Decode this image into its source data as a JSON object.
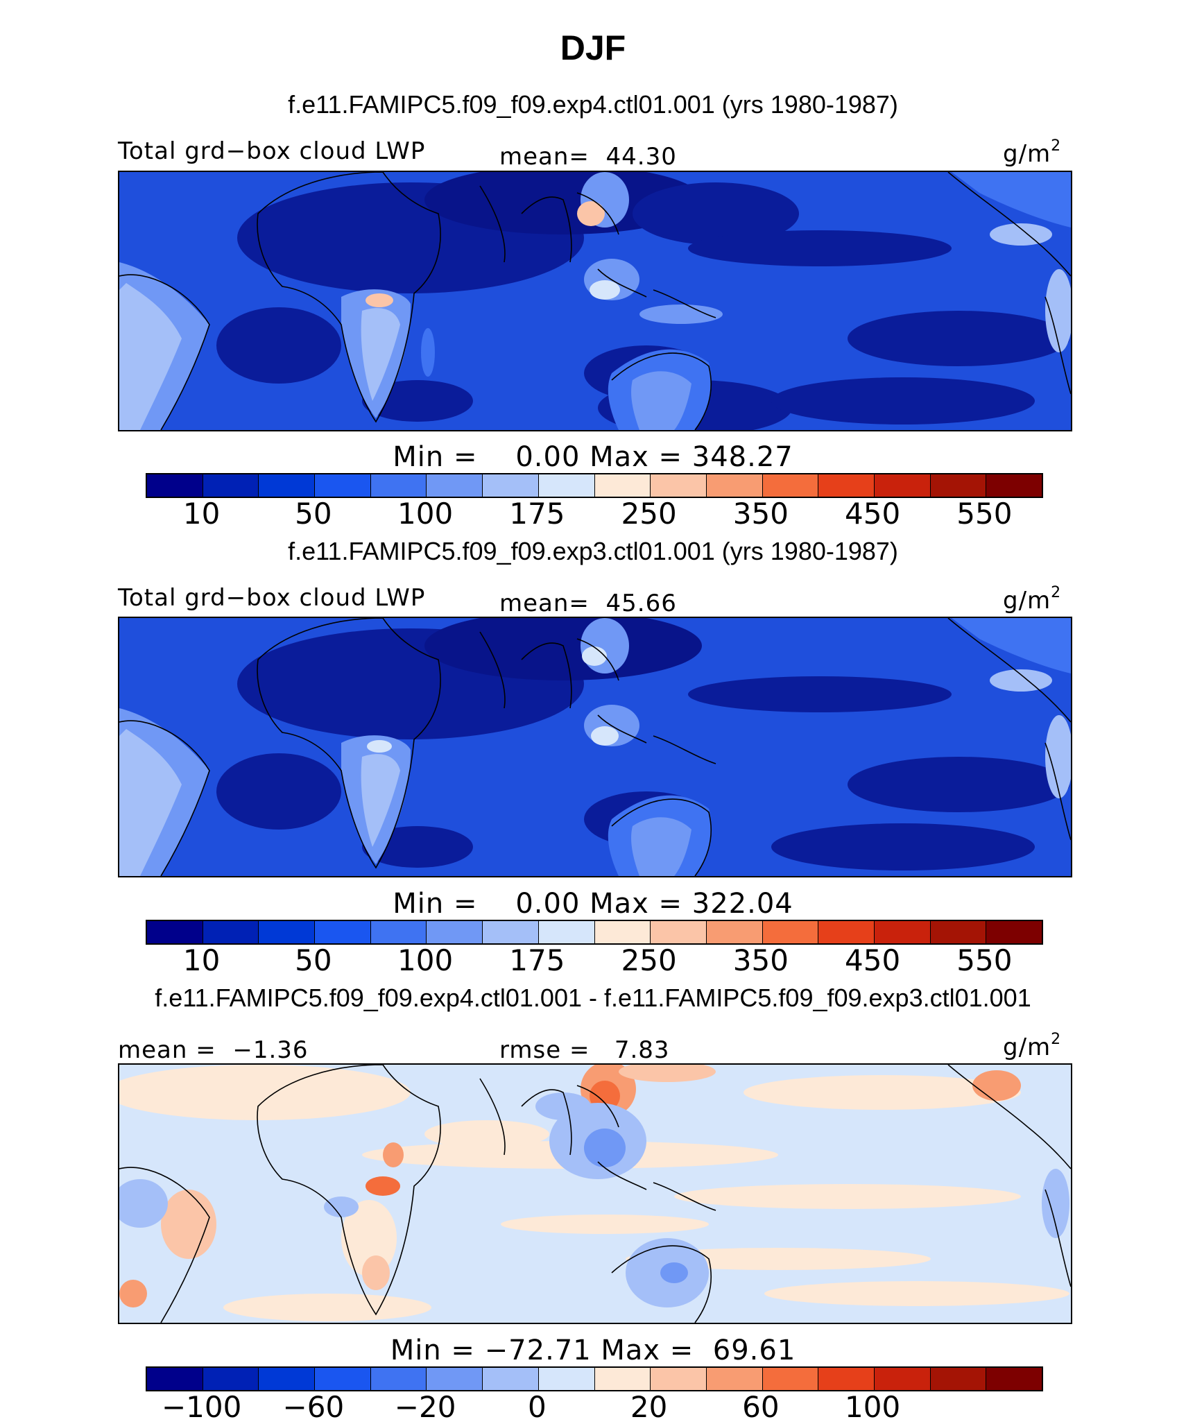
{
  "title": "DJF",
  "units_main": "g/m",
  "units_sup": "2",
  "panels": [
    {
      "case_title": "f.e11.FAMIPC5.f09_f09.exp4.ctl01.001 (yrs 1980-1987)",
      "var_label": "Total grd−box cloud LWP",
      "stat_label": "mean=  44.30",
      "minmax": "Min =    0.00 Max = 348.27"
    },
    {
      "case_title": "f.e11.FAMIPC5.f09_f09.exp3.ctl01.001 (yrs 1980-1987)",
      "var_label": "Total grd−box cloud LWP",
      "stat_label": "mean=  45.66",
      "minmax": "Min =    0.00 Max = 322.04"
    },
    {
      "case_title": "f.e11.FAMIPC5.f09_f09.exp4.ctl01.001 - f.e11.FAMIPC5.f09_f09.exp3.ctl01.001",
      "var_label": "mean =  −1.36",
      "stat_label": "rmse =   7.83",
      "minmax": "Min = −72.71 Max =  69.61"
    }
  ],
  "colorbar_abs": {
    "colors": [
      "#00008b",
      "#0021b5",
      "#0039d6",
      "#1a56f0",
      "#3f73f2",
      "#7098f5",
      "#a4bff8",
      "#d6e6fb",
      "#fde9d7",
      "#fbc5a8",
      "#f89c72",
      "#f46d3c",
      "#e6401a",
      "#c9220c",
      "#a41405",
      "#7d0000"
    ],
    "tick_labels": [
      "10",
      "50",
      "100",
      "175",
      "250",
      "350",
      "450",
      "550"
    ]
  },
  "colorbar_diff": {
    "colors": [
      "#00008b",
      "#0021b5",
      "#0039d6",
      "#1a56f0",
      "#3f73f2",
      "#7098f5",
      "#a4bff8",
      "#d6e6fb",
      "#fde9d7",
      "#fbc5a8",
      "#f89c72",
      "#f46d3c",
      "#e6401a",
      "#c9220c",
      "#a41405",
      "#7d0000"
    ],
    "tick_labels": [
      "−100",
      "−60",
      "−20",
      "0",
      "20",
      "60",
      "100"
    ]
  }
}
